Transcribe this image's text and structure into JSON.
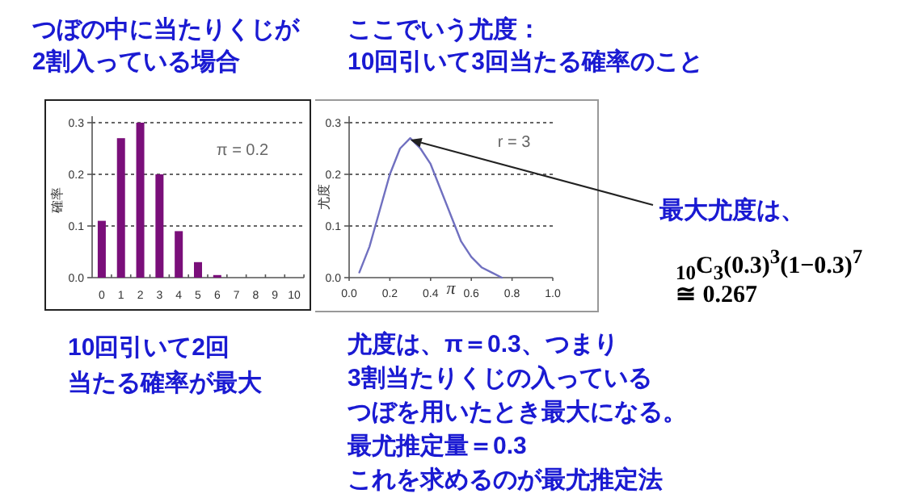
{
  "chart_data": [
    {
      "type": "bar",
      "title": "つぼの中に当たりくじが",
      "subtitle": "2割入っている場合",
      "ylabel": "確率",
      "categories": [
        "0",
        "1",
        "2",
        "3",
        "4",
        "5",
        "6",
        "7",
        "8",
        "9",
        "10"
      ],
      "values": [
        0.11,
        0.27,
        0.3,
        0.2,
        0.09,
        0.03,
        0.005,
        0,
        0,
        0,
        0
      ],
      "color": "#7a0f7a",
      "ylim": [
        0,
        0.3
      ],
      "yticks": [
        {
          "value": 0,
          "label": "0.0"
        },
        0.1,
        0.2,
        0.3
      ],
      "grid": "y",
      "annotations": [
        "π = 0.2",
        "10回引いて2回",
        "当たる確率が最大"
      ]
    },
    {
      "type": "line",
      "title": "ここでいう尤度：",
      "subtitle": "10回引いて3回当たる確率のこと",
      "xlabel": "π",
      "ylabel": "尤度",
      "x": [
        0.05,
        0.1,
        0.15,
        0.2,
        0.25,
        0.3,
        0.35,
        0.4,
        0.45,
        0.5,
        0.55,
        0.6,
        0.65,
        0.7,
        0.75
      ],
      "values": [
        0.01,
        0.06,
        0.13,
        0.2,
        0.25,
        0.27,
        0.25,
        0.22,
        0.17,
        0.12,
        0.07,
        0.04,
        0.02,
        0.01,
        0
      ],
      "color": "#7070c0",
      "xlim": [
        0,
        1
      ],
      "xticks": [
        {
          "value": 0,
          "label": "0.0"
        },
        0.2,
        0.4,
        0.6,
        0.8,
        {
          "value": 1,
          "label": "1.0"
        }
      ],
      "ylim": [
        0,
        0.3
      ],
      "yticks": [
        {
          "value": 0,
          "label": "0.0"
        },
        0.1,
        0.2,
        0.3
      ],
      "grid": "y",
      "annotations": [
        "r = 3",
        {
          "text": "最大尤度は、",
          "x": 0.3,
          "y": 0.267
        },
        "$_{10}$C$_{3}$(0.3)$^{3}$(1−0.3)$^{7}$",
        "≅ 0.267",
        "尤度は、π＝0.3、つまり",
        "3割当たりくじの入っている",
        "つぼを用いたとき最大になる。",
        "最尤推定量＝0.3",
        "これを求めるのが最尤推定法"
      ]
    }
  ]
}
